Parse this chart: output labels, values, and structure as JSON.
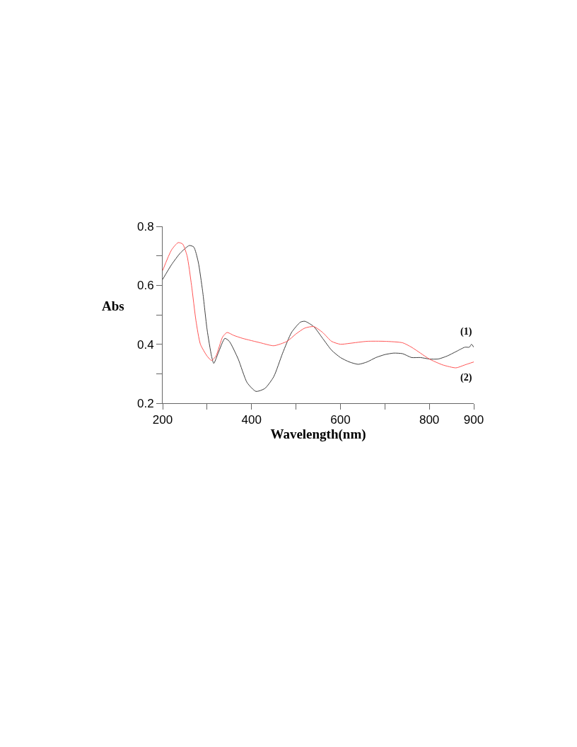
{
  "chart_data": {
    "type": "line",
    "xlabel": "Wavelength(nm)",
    "ylabel": "Abs",
    "xlim": [
      200,
      900
    ],
    "xticks": [
      200,
      {
        "value": 300,
        "label": null
      },
      400,
      {
        "value": 500,
        "label": null
      },
      600,
      {
        "value": 700,
        "label": null
      },
      800,
      900
    ],
    "ylim": [
      0.2,
      0.8
    ],
    "yticks": [
      0.2,
      {
        "value": 0.3,
        "label": null
      },
      0.4,
      {
        "value": 0.5,
        "label": null
      },
      0.6,
      {
        "value": 0.7,
        "label": null
      },
      0.8
    ],
    "grid": false,
    "legend": false,
    "marker": "none",
    "line_style": "solid",
    "series": [
      {
        "name": "(1)",
        "color": "#404040",
        "x": [
          200,
          220,
          240,
          260,
          270,
          280,
          290,
          300,
          310,
          315,
          325,
          340,
          350,
          370,
          390,
          410,
          430,
          450,
          470,
          490,
          510,
          520,
          540,
          560,
          580,
          600,
          620,
          640,
          660,
          680,
          700,
          720,
          740,
          760,
          780,
          800,
          820,
          840,
          860,
          880,
          890,
          895,
          900
        ],
        "values": [
          0.62,
          0.67,
          0.71,
          0.735,
          0.73,
          0.68,
          0.58,
          0.45,
          0.36,
          0.335,
          0.37,
          0.42,
          0.41,
          0.35,
          0.27,
          0.24,
          0.25,
          0.29,
          0.37,
          0.44,
          0.475,
          0.478,
          0.46,
          0.42,
          0.38,
          0.355,
          0.34,
          0.332,
          0.34,
          0.355,
          0.365,
          0.37,
          0.368,
          0.355,
          0.355,
          0.35,
          0.35,
          0.36,
          0.375,
          0.39,
          0.39,
          0.4,
          0.39
        ]
      },
      {
        "name": "(2)",
        "color": "#ff5555",
        "x": [
          200,
          220,
          235,
          245,
          255,
          265,
          275,
          285,
          300,
          310,
          320,
          335,
          345,
          360,
          380,
          420,
          450,
          480,
          500,
          520,
          540,
          560,
          580,
          600,
          620,
          660,
          700,
          740,
          760,
          780,
          800,
          830,
          860,
          880,
          900
        ],
        "values": [
          0.65,
          0.72,
          0.745,
          0.74,
          0.7,
          0.6,
          0.48,
          0.4,
          0.36,
          0.345,
          0.36,
          0.425,
          0.44,
          0.43,
          0.42,
          0.405,
          0.395,
          0.41,
          0.435,
          0.455,
          0.46,
          0.44,
          0.41,
          0.4,
          0.403,
          0.41,
          0.41,
          0.405,
          0.39,
          0.37,
          0.35,
          0.33,
          0.32,
          0.33,
          0.34
        ]
      }
    ]
  }
}
